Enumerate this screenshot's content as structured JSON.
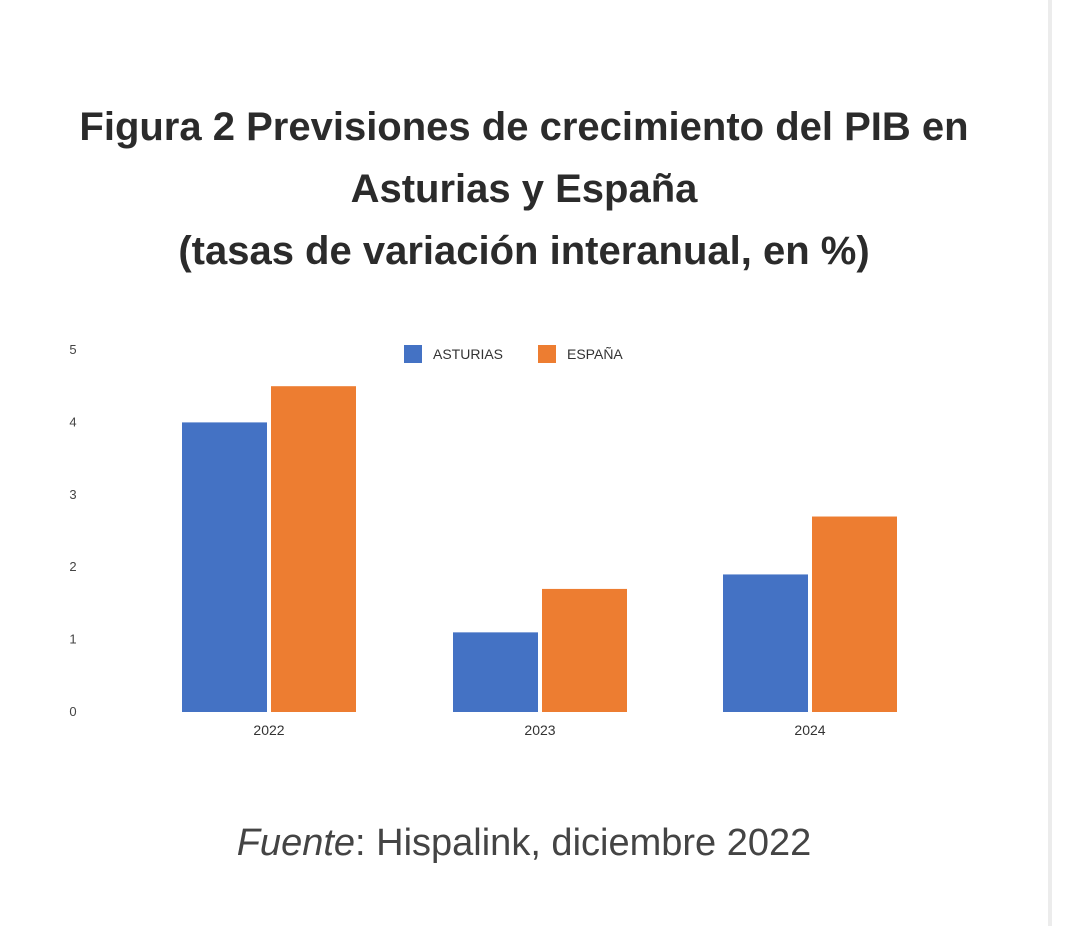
{
  "header": {
    "title_line1": "Figura 2 Previsiones de crecimiento del PIB en",
    "title_line2": "Asturias y España",
    "title_line3": "(tasas de variación interanual, en %)"
  },
  "footer": {
    "source_label": "Fuente",
    "source_text": ": Hispalink, diciembre 2022"
  },
  "chart_data": {
    "type": "bar",
    "categories": [
      "2022",
      "2023",
      "2024"
    ],
    "series": [
      {
        "name": "ASTURIAS",
        "color": "#4472c4",
        "values": [
          4.0,
          1.1,
          1.9
        ]
      },
      {
        "name": "ESPAÑA",
        "color": "#ed7d31",
        "values": [
          4.5,
          1.7,
          2.7
        ]
      }
    ],
    "ylim": [
      0,
      5
    ],
    "yticks": [
      "0",
      "1",
      "2",
      "3",
      "4",
      "5"
    ],
    "grid": false,
    "legend_position": "top-center"
  }
}
